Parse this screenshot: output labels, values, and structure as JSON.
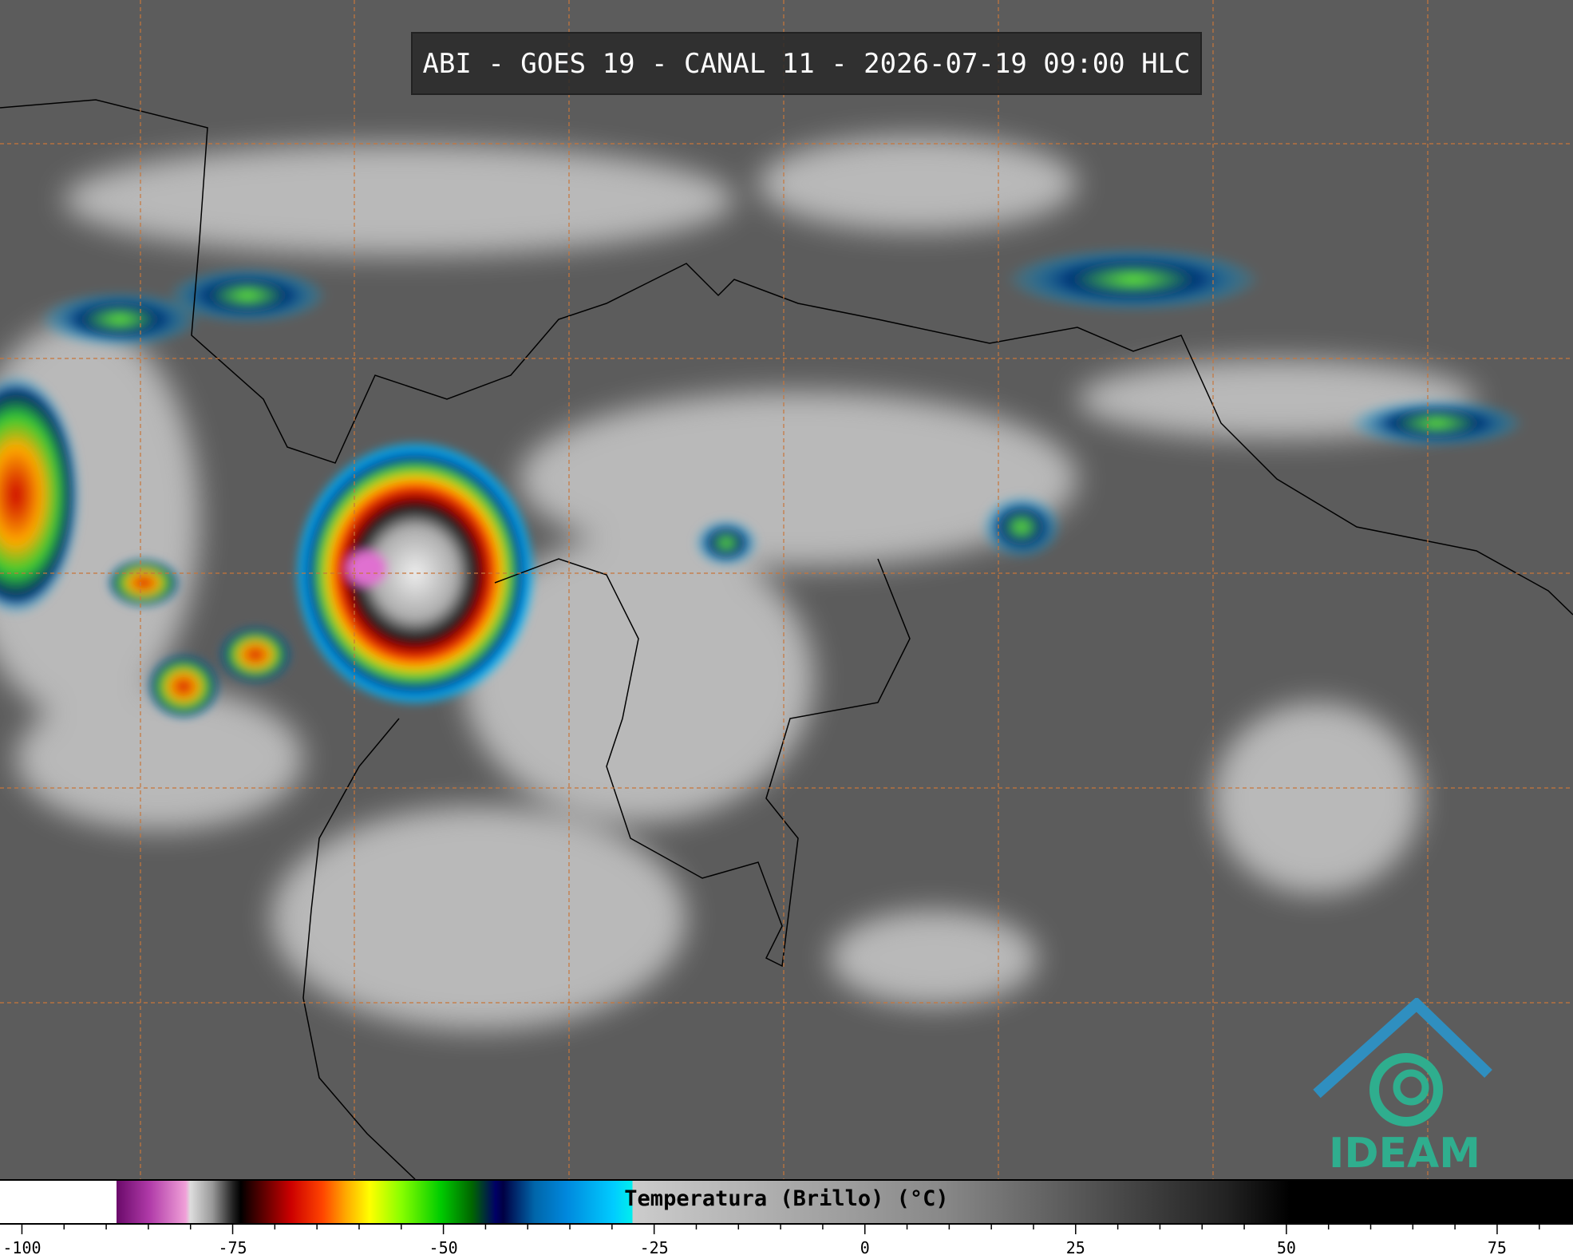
{
  "header": {
    "title": "ABI - GOES 19 - CANAL 11 - 2026-07-19 09:00 HLC"
  },
  "colorbar": {
    "label": "Temperatura (Brillo) (°C)",
    "xlim": [
      -102.6,
      84
    ],
    "ticks": [
      -100,
      -75,
      -50,
      -25,
      0,
      25,
      50,
      75
    ],
    "minor_ticks": [
      -95,
      -90,
      -85,
      -80,
      -70,
      -65,
      -60,
      -55,
      -45,
      -40,
      -35,
      -30,
      -20,
      -15,
      -10,
      -5,
      5,
      10,
      15,
      20,
      30,
      35,
      40,
      45,
      55,
      60,
      65,
      70,
      80
    ]
  },
  "logo": {
    "text": "IDEAM"
  }
}
